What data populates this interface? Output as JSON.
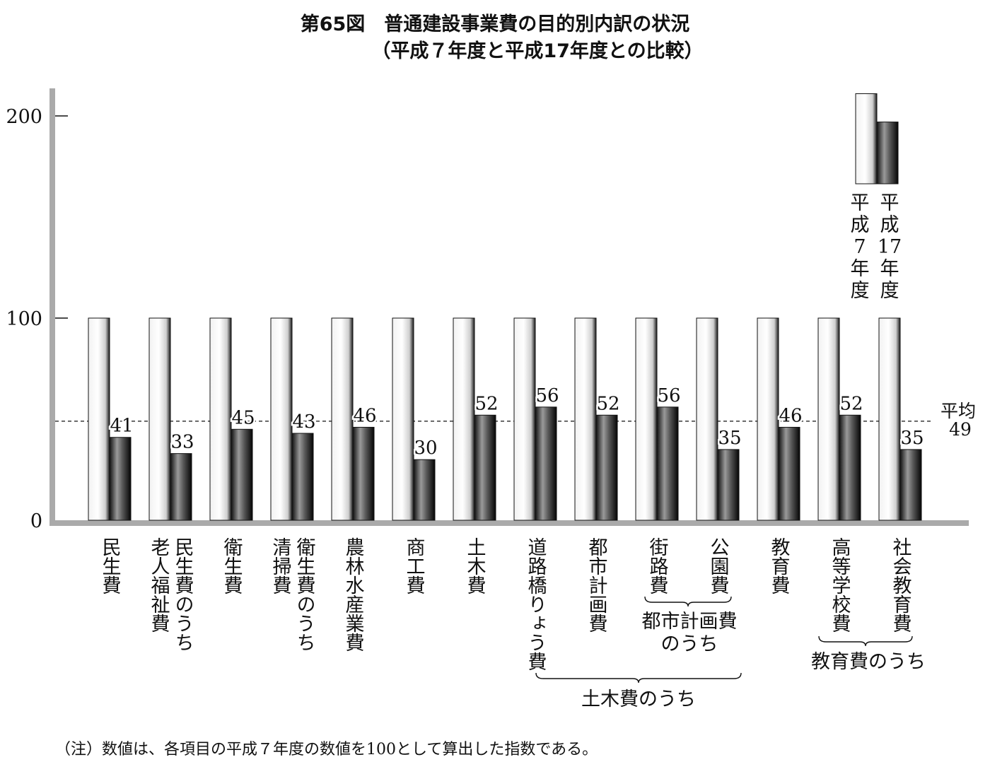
{
  "title": "第65図　普通建設事業費の目的別内訳の状況",
  "subtitle": "（平成７年度と平成17年度との比較）",
  "note": "（注）数値は、各項目の平成７年度の数値を100として算出した指数である。",
  "chart_data": {
    "type": "bar",
    "categories": [
      {
        "lines": [
          "民生費"
        ]
      },
      {
        "lines": [
          "民生費のうち",
          "老人福祉費"
        ]
      },
      {
        "lines": [
          "衛生費"
        ]
      },
      {
        "lines": [
          "衛生費のうち",
          "清掃費"
        ]
      },
      {
        "lines": [
          "農林水産業費"
        ]
      },
      {
        "lines": [
          "商工費"
        ]
      },
      {
        "lines": [
          "土木費"
        ]
      },
      {
        "lines": [
          "道路橋りょう費"
        ]
      },
      {
        "lines": [
          "都市計画費"
        ]
      },
      {
        "lines": [
          "街路費"
        ]
      },
      {
        "lines": [
          "公園費"
        ]
      },
      {
        "lines": [
          "教育費"
        ]
      },
      {
        "lines": [
          "高等学校費"
        ]
      },
      {
        "lines": [
          "社会教育費"
        ]
      }
    ],
    "series": [
      {
        "name": "平成7年度",
        "values": [
          100,
          100,
          100,
          100,
          100,
          100,
          100,
          100,
          100,
          100,
          100,
          100,
          100,
          100
        ]
      },
      {
        "name": "平成17年度",
        "values": [
          41,
          33,
          45,
          43,
          46,
          30,
          52,
          56,
          52,
          56,
          35,
          46,
          52,
          35
        ]
      }
    ],
    "value_labels": [
      "41",
      "33",
      "45",
      "43",
      "46",
      "30",
      "52",
      "56",
      "52",
      "56",
      "35",
      "46",
      "52",
      "35"
    ],
    "average": {
      "value": 49,
      "label_top": "平均",
      "label_bottom": "49"
    },
    "ylim": [
      0,
      210
    ],
    "yticks": [
      "0",
      "100",
      "200"
    ],
    "legend": {
      "items": [
        {
          "name": "平成7年度",
          "chars": [
            "平",
            "成",
            "7",
            "年",
            "度"
          ]
        },
        {
          "name": "平成17年度",
          "chars": [
            "平",
            "成",
            "17",
            "年",
            "度"
          ]
        }
      ],
      "placement": "top-right"
    },
    "groups": [
      {
        "label_lines": [
          "都市計画費",
          "のうち"
        ]
      },
      {
        "label_lines": [
          "教育費のうち"
        ]
      },
      {
        "label_lines": [
          "土木費のうち"
        ]
      }
    ],
    "grid": false
  }
}
